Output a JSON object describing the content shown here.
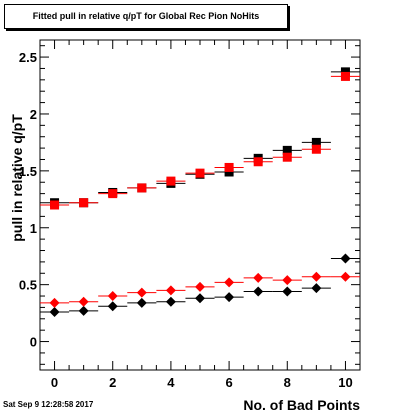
{
  "chart_data": {
    "type": "scatter",
    "title": "Fitted pull in relative q/pT for Global Rec Pion NoHits",
    "xlabel": "No. of Bad Points",
    "ylabel": "pull in relative q/pT",
    "xlim": [
      -0.5,
      10.5
    ],
    "ylim": [
      -0.25,
      2.65
    ],
    "xticks": [
      "0",
      "2",
      "4",
      "6",
      "8",
      "10"
    ],
    "xtick_values": [
      0,
      2,
      4,
      6,
      8,
      10
    ],
    "yticks": [
      "0",
      "0.5",
      "1",
      "1.5",
      "2",
      "2.5"
    ],
    "ytick_values": [
      0,
      0.5,
      1,
      1.5,
      2,
      2.5
    ],
    "grid": false,
    "x": [
      0,
      1,
      2,
      3,
      4,
      5,
      6,
      7,
      8,
      9,
      10
    ],
    "series": [
      {
        "marker": "square",
        "color": "#000000",
        "values": [
          1.22,
          1.22,
          1.31,
          1.35,
          1.39,
          1.47,
          1.49,
          1.61,
          1.68,
          1.75,
          2.37
        ]
      },
      {
        "marker": "square",
        "color": "#ff0000",
        "values": [
          1.2,
          1.22,
          1.3,
          1.35,
          1.41,
          1.48,
          1.53,
          1.58,
          1.62,
          1.69,
          2.33
        ]
      },
      {
        "marker": "diamond",
        "color": "#000000",
        "values": [
          0.26,
          0.27,
          0.31,
          0.34,
          0.35,
          0.38,
          0.39,
          0.44,
          0.44,
          0.47,
          0.73
        ]
      },
      {
        "marker": "diamond",
        "color": "#ff0000",
        "values": [
          0.34,
          0.35,
          0.4,
          0.43,
          0.45,
          0.48,
          0.52,
          0.56,
          0.54,
          0.57,
          0.57
        ]
      }
    ]
  },
  "footer": {
    "timestamp": "Sat Sep  9 12:28:58 2017"
  }
}
